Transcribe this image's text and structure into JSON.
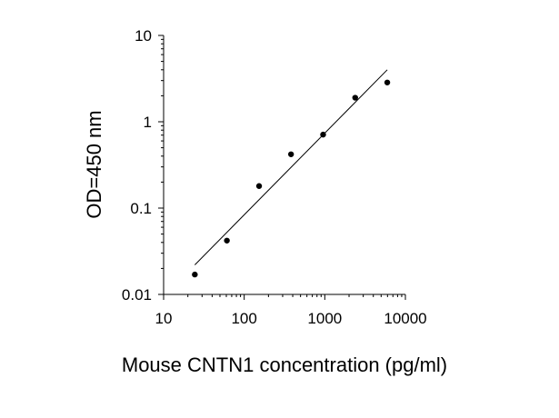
{
  "chart_data": {
    "type": "scatter",
    "xlabel": "Mouse CNTN1 concentration (pg/ml)",
    "ylabel": "OD=450 nm",
    "x_scale": "log",
    "y_scale": "log",
    "xlim": [
      10,
      10000
    ],
    "ylim": [
      0.01,
      10
    ],
    "x_ticks": [
      10,
      100,
      1000,
      10000
    ],
    "x_tick_labels": [
      "10",
      "100",
      "1000",
      "10000"
    ],
    "y_ticks": [
      0.01,
      0.1,
      1,
      10
    ],
    "y_tick_labels": [
      "0.01",
      "0.1",
      "1",
      "10"
    ],
    "grid": false,
    "series": [
      {
        "points": [
          {
            "x": 24.4,
            "y": 0.017
          },
          {
            "x": 61,
            "y": 0.042
          },
          {
            "x": 153,
            "y": 0.18
          },
          {
            "x": 381,
            "y": 0.42
          },
          {
            "x": 953,
            "y": 0.71
          },
          {
            "x": 2383,
            "y": 1.9
          },
          {
            "x": 5958,
            "y": 2.85
          }
        ]
      }
    ],
    "fit_line": {
      "from": {
        "x": 24.4,
        "y": 0.022
      },
      "to": {
        "x": 5958,
        "y": 4.0
      }
    }
  }
}
